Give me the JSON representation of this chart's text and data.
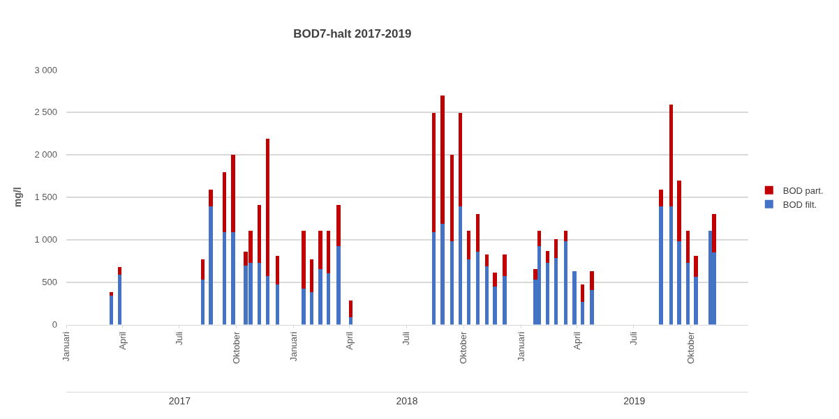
{
  "chart_data": {
    "type": "bar",
    "title": "BOD7-halt 2017-2019",
    "ylabel": "mg/l",
    "stacked": true,
    "grid": "y",
    "legend": "right",
    "x": [
      "2017-03-14",
      "2017-03-28",
      "2017-08-08",
      "2017-08-21",
      "2017-09-12",
      "2017-09-26",
      "2017-10-16",
      "2017-10-24",
      "2017-11-07",
      "2017-11-20",
      "2017-12-06",
      "2018-01-17",
      "2018-01-30",
      "2018-02-13",
      "2018-02-26",
      "2018-03-14",
      "2018-04-03",
      "2018-08-14",
      "2018-08-28",
      "2018-09-12",
      "2018-09-26",
      "2018-10-09",
      "2018-10-24",
      "2018-11-07",
      "2018-11-20",
      "2018-12-06",
      "2019-01-24",
      "2019-01-30",
      "2019-02-13",
      "2019-02-26",
      "2019-03-14",
      "2019-03-28",
      "2019-04-10",
      "2019-04-25",
      "2019-08-14",
      "2019-08-30",
      "2019-09-12",
      "2019-09-26",
      "2019-10-09",
      "2019-11-01",
      "2019-11-07"
    ],
    "series": [
      {
        "name": "BOD filt.",
        "color": "#4472c4",
        "values": [
          340,
          585,
          530,
          1390,
          1085,
          1085,
          695,
          730,
          730,
          570,
          475,
          420,
          385,
          650,
          605,
          920,
          90,
          1085,
          1185,
          985,
          1390,
          765,
          860,
          685,
          450,
          570,
          530,
          920,
          730,
          785,
          985,
          625,
          270,
          405,
          1390,
          1390,
          985,
          730,
          560,
          1105,
          850
        ]
      },
      {
        "name": "BOD part.",
        "color": "#c00000",
        "values": [
          40,
          95,
          240,
          200,
          710,
          910,
          165,
          375,
          675,
          1620,
          330,
          685,
          380,
          455,
          500,
          485,
          190,
          1410,
          1510,
          1010,
          1105,
          340,
          445,
          140,
          160,
          255,
          125,
          185,
          140,
          220,
          120,
          0,
          205,
          220,
          200,
          1200,
          710,
          375,
          245,
          0,
          455
        ]
      }
    ],
    "xlim": [
      "2017-01-01",
      "2020-01-01"
    ],
    "xticks": [
      {
        "value": "2017-01-01",
        "label": "Januari"
      },
      {
        "value": "2017-04-01",
        "label": "April"
      },
      {
        "value": "2017-07-01",
        "label": "Juli"
      },
      {
        "value": "2017-10-01",
        "label": "Oktober"
      },
      {
        "value": "2018-01-01",
        "label": "Januari"
      },
      {
        "value": "2018-04-01",
        "label": "April"
      },
      {
        "value": "2018-07-01",
        "label": "Juli"
      },
      {
        "value": "2018-10-01",
        "label": "Oktober"
      },
      {
        "value": "2019-01-01",
        "label": "Januari"
      },
      {
        "value": "2019-04-01",
        "label": "April"
      },
      {
        "value": "2019-07-01",
        "label": "Juli"
      },
      {
        "value": "2019-10-01",
        "label": "Oktober"
      }
    ],
    "x2lim": [
      "2017-01-01",
      "2020-01-01"
    ],
    "x2ticks": [
      {
        "value": "2017-07-02",
        "label": "2017"
      },
      {
        "value": "2018-07-02",
        "label": "2018"
      },
      {
        "value": "2019-07-02",
        "label": "2019"
      }
    ],
    "ylim": [
      0,
      3000
    ],
    "yticks": [
      0,
      500,
      {
        "value": 1000,
        "label": "1 000"
      },
      {
        "value": 1500,
        "label": "1 500"
      },
      {
        "value": 2000,
        "label": "2 000"
      },
      {
        "value": 2500,
        "label": "2 500"
      },
      {
        "value": 3000,
        "label": "3 000"
      }
    ]
  }
}
